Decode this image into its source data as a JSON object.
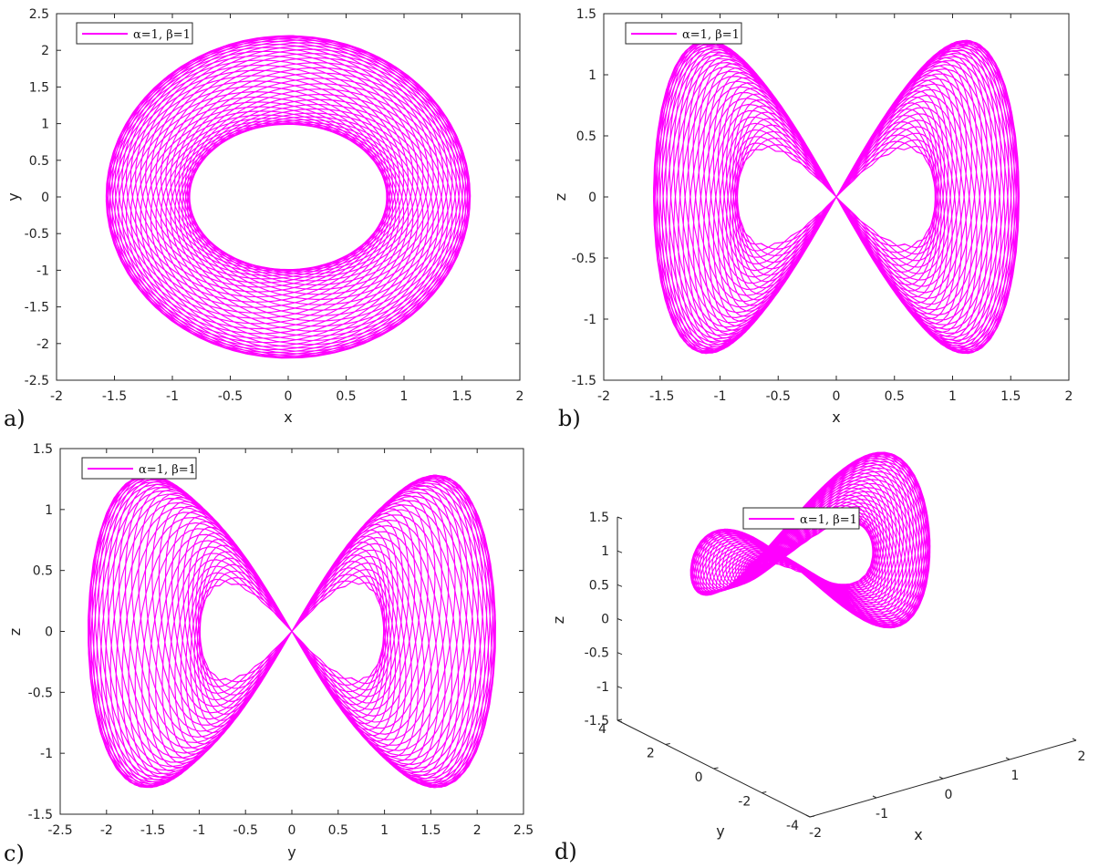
{
  "colors": {
    "trajectory": "#ff00ff",
    "axes": "#262626"
  },
  "chart_data": [
    {
      "panel": "a)",
      "type": "line",
      "xlabel": "x",
      "ylabel": "y",
      "xlim": [
        -2,
        2
      ],
      "ylim": [
        -2.5,
        2.5
      ],
      "xticks": [
        "-2",
        "-1.5",
        "-1",
        "-0.5",
        "0",
        "0.5",
        "1",
        "1.5",
        "2"
      ],
      "yticks": [
        "-2.5",
        "-2",
        "-1.5",
        "-1",
        "-0.5",
        "0",
        "0.5",
        "1",
        "1.5",
        "2",
        "2.5"
      ],
      "legend": "α=1, β=1",
      "legend_loc": "top-left",
      "grid": false,
      "series": [
        {
          "values_summary": "quasi-periodic annulus, x∈[-1.7,1.7], y∈[-2.2,2.2], inner hole |x|<0.8, |y|<1"
        }
      ]
    },
    {
      "panel": "b)",
      "type": "line",
      "xlabel": "x",
      "ylabel": "z",
      "xlim": [
        -2,
        2
      ],
      "ylim": [
        -1.5,
        1.5
      ],
      "xticks": [
        "-2",
        "-1.5",
        "-1",
        "-0.5",
        "0",
        "0.5",
        "1",
        "1.5",
        "2"
      ],
      "yticks": [
        "-1.5",
        "-1",
        "-0.5",
        "0",
        "0.5",
        "1",
        "1.5"
      ],
      "legend": "α=1, β=1",
      "legend_loc": "top-left",
      "grid": false,
      "series": [
        {
          "values_summary": "butterfly-shaped torus projection, x∈[-1.7,1.7], z∈[-1.35,1.35]"
        }
      ]
    },
    {
      "panel": "c)",
      "type": "line",
      "xlabel": "y",
      "ylabel": "z",
      "xlim": [
        -2.5,
        2.5
      ],
      "ylim": [
        -1.5,
        1.5
      ],
      "xticks": [
        "-2.5",
        "-2",
        "-1.5",
        "-1",
        "-0.5",
        "0",
        "0.5",
        "1",
        "1.5",
        "2",
        "2.5"
      ],
      "yticks": [
        "-1.5",
        "-1",
        "-0.5",
        "0",
        "0.5",
        "1",
        "1.5"
      ],
      "legend": "α=1, β=1",
      "legend_loc": "top-left",
      "grid": false,
      "series": [
        {
          "values_summary": "figure-eight lobes, y∈[-2.2,2.2], z∈[-1.35,1.35]"
        }
      ]
    },
    {
      "panel": "d)",
      "type": "line",
      "xlabel": "x",
      "ylabel": "y",
      "zlabel": "z",
      "xlim": [
        -2,
        2
      ],
      "ylim": [
        -4,
        4
      ],
      "zlim": [
        -1.5,
        1.5
      ],
      "xticks": [
        "-2",
        "-1",
        "0",
        "1",
        "2"
      ],
      "yticks": [
        "-4",
        "-2",
        "0",
        "2",
        "4"
      ],
      "zticks": [
        "-1.5",
        "-1",
        "-0.5",
        "0",
        "0.5",
        "1",
        "1.5"
      ],
      "legend": "α=1, β=1",
      "legend_loc": "top-center",
      "grid": false,
      "series": [
        {
          "values_summary": "3D saddle-shaped torus trajectory"
        }
      ]
    }
  ]
}
